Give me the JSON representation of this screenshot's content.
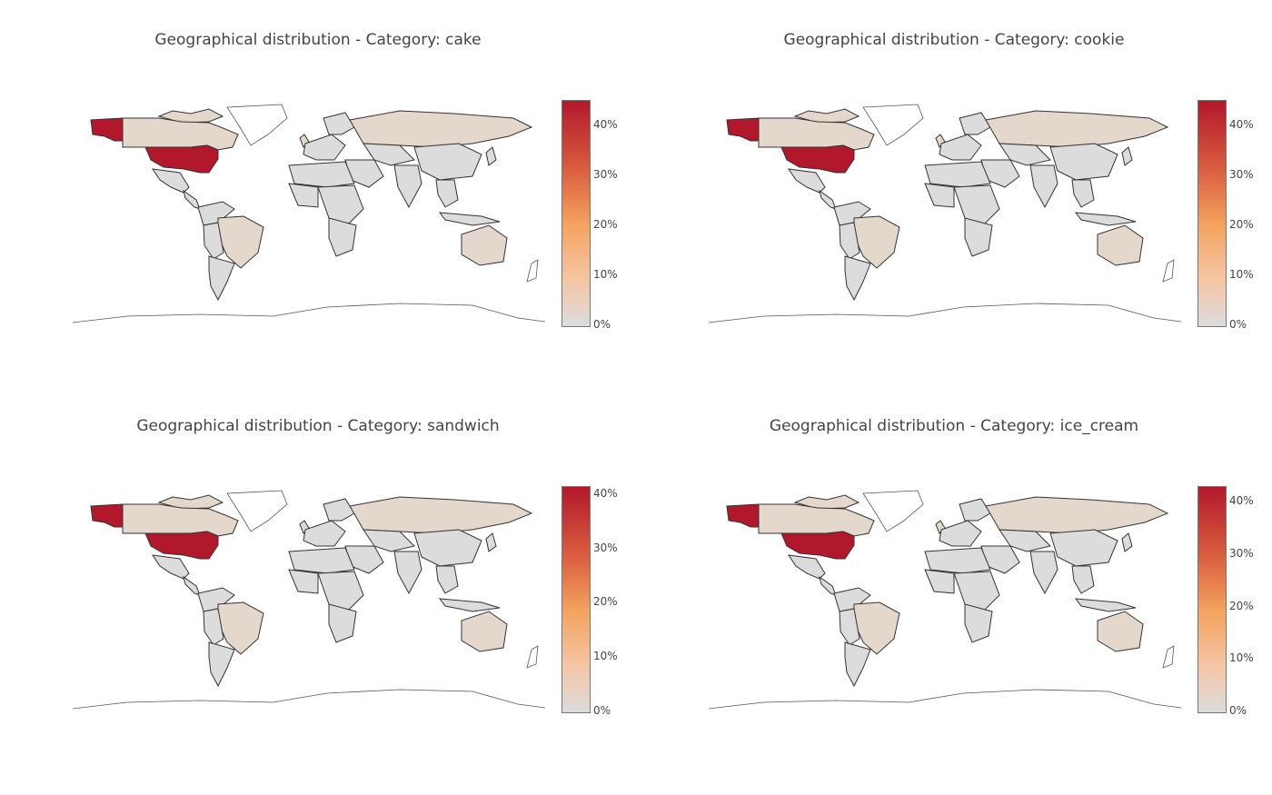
{
  "panels": [
    {
      "title": "Geographical distribution - Category: cake",
      "colorbar_ticks": [
        "0%",
        "10%",
        "20%",
        "30%",
        "40%"
      ],
      "colorbar_max_percent": 45
    },
    {
      "title": "Geographical distribution - Category: cookie",
      "colorbar_ticks": [
        "0%",
        "10%",
        "20%",
        "30%",
        "40%"
      ],
      "colorbar_max_percent": 45
    },
    {
      "title": "Geographical distribution - Category: sandwich",
      "colorbar_ticks": [
        "0%",
        "10%",
        "20%",
        "30%",
        "40%"
      ],
      "colorbar_max_percent": 41.5
    },
    {
      "title": "Geographical distribution - Category: ice_cream",
      "colorbar_ticks": [
        "0%",
        "10%",
        "20%",
        "30%",
        "40%"
      ],
      "colorbar_max_percent": 43
    }
  ],
  "colors": {
    "high": "#b2182b",
    "mid": "#f4a35f",
    "low_warm": "#e4d7cc",
    "zero": "#dcdcdc",
    "border": "#333333"
  }
}
